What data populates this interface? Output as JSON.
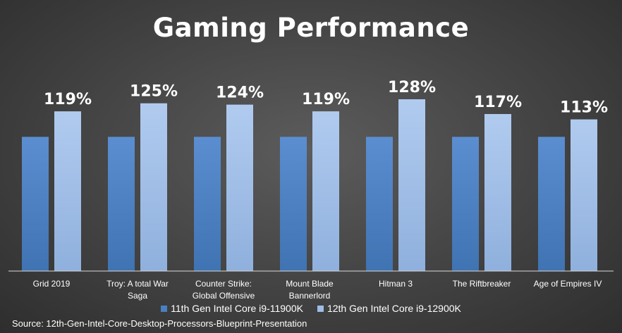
{
  "chart_data": {
    "type": "bar",
    "title": "Gaming Performance",
    "categories": [
      "Grid 2019",
      "Troy: A total War Saga",
      "Counter Strike: Global Offensive",
      "Mount Blade Bannerlord",
      "Hitman 3",
      "The Riftbreaker",
      "Age of Empires IV"
    ],
    "category_lines": [
      [
        "Grid 2019"
      ],
      [
        "Troy: A total War",
        "Saga"
      ],
      [
        "Counter Strike:",
        "Global Offensive"
      ],
      [
        "Mount Blade",
        "Bannerlord"
      ],
      [
        "Hitman 3"
      ],
      [
        "The Riftbreaker"
      ],
      [
        "Age of Empires IV"
      ]
    ],
    "series": [
      {
        "name": "11th Gen Intel Core i9-11900K",
        "values": [
          100,
          100,
          100,
          100,
          100,
          100,
          100
        ],
        "color": "#4a80bf"
      },
      {
        "name": "12th Gen Intel Core i9-12900K",
        "values": [
          119,
          125,
          124,
          119,
          128,
          117,
          113
        ],
        "labels": [
          "119%",
          "125%",
          "124%",
          "119%",
          "128%",
          "117%",
          "113%"
        ],
        "color": "#9fbde6"
      }
    ],
    "ylim": [
      0,
      128
    ],
    "grid": false,
    "legend_position": "bottom"
  },
  "source": "Source: 12th-Gen-Intel-Core-Desktop-Processors-Blueprint-Presentation"
}
